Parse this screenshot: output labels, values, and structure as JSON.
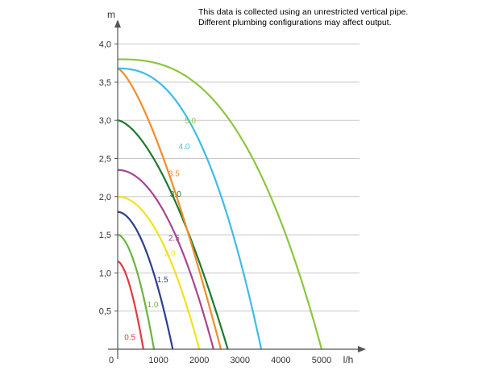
{
  "note": {
    "line1": "This data is collected using an unrestricted vertical pipe.",
    "line2": "Different plumbing configurations may affect output."
  },
  "chart_data": {
    "type": "line",
    "xlabel": "l/h",
    "ylabel": "m",
    "xlim": [
      0,
      6100
    ],
    "ylim": [
      0,
      4.3
    ],
    "x_ticks": [
      0,
      1000,
      2000,
      3000,
      4000,
      5000
    ],
    "x_tick_labels": [
      "0",
      "1000",
      "2000",
      "3000",
      "4000",
      "5000"
    ],
    "y_ticks": [
      0.5,
      1.0,
      1.5,
      2.0,
      2.5,
      3.0,
      3.5,
      4.0
    ],
    "y_tick_labels": [
      "0,5",
      "1,0",
      "1,5",
      "2,0",
      "2,5",
      "3,0",
      "3,5",
      "4,0"
    ],
    "grid": "horizontal",
    "series": [
      {
        "name": "0.5",
        "color": "#e03a3e",
        "shutoff": 1.15,
        "max_flow": 630,
        "exponent": 1.7,
        "label_at": [
          300,
          0.12
        ]
      },
      {
        "name": "1.0",
        "color": "#6db33f",
        "shutoff": 1.5,
        "max_flow": 890,
        "exponent": 1.8,
        "label_at": [
          860,
          0.55
        ]
      },
      {
        "name": "1.5",
        "color": "#2b3f8f",
        "shutoff": 1.8,
        "max_flow": 1350,
        "exponent": 1.9,
        "label_at": [
          1100,
          0.88
        ]
      },
      {
        "name": "2.0",
        "color": "#f2e21e",
        "shutoff": 2.0,
        "max_flow": 2000,
        "exponent": 2.0,
        "label_at": [
          1280,
          1.22
        ]
      },
      {
        "name": "2.5",
        "color": "#a7458f",
        "shutoff": 2.35,
        "max_flow": 2350,
        "exponent": 2.0,
        "label_at": [
          1380,
          1.42
        ]
      },
      {
        "name": "3.0",
        "color": "#1a7a2e",
        "shutoff": 3.0,
        "max_flow": 2700,
        "exponent": 1.6,
        "label_at": [
          1420,
          2.0
        ]
      },
      {
        "name": "3.5",
        "color": "#f28c28",
        "shutoff": 3.68,
        "max_flow": 2530,
        "exponent": 1.4,
        "label_at": [
          1380,
          2.27
        ]
      },
      {
        "name": "4.0",
        "color": "#3fbbe8",
        "shutoff": 3.68,
        "max_flow": 3520,
        "exponent": 2.4,
        "label_at": [
          1630,
          2.62
        ]
      },
      {
        "name": "5.0",
        "color": "#8cc63f",
        "shutoff": 3.8,
        "max_flow": 5000,
        "exponent": 2.6,
        "label_at": [
          1780,
          2.96
        ]
      }
    ]
  }
}
